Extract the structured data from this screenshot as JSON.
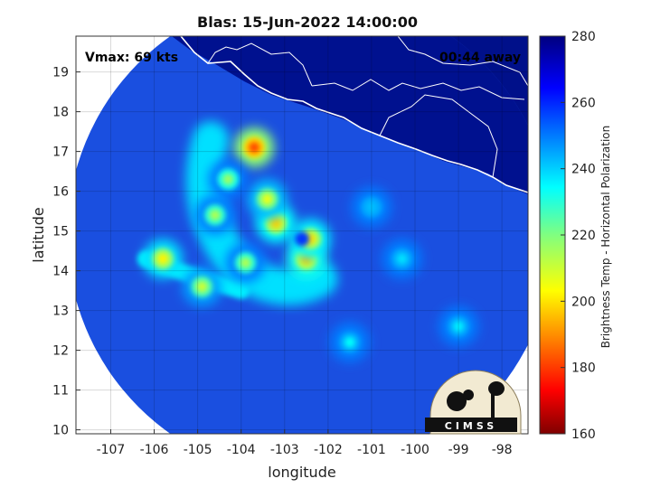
{
  "chart_data": {
    "type": "heatmap",
    "title": "Blas: 15-Jun-2022 14:00:00",
    "xlabel": "longitude",
    "ylabel": "latitude",
    "xlim": [
      -107.8,
      -97.4
    ],
    "ylim": [
      9.9,
      19.9
    ],
    "xticks": [
      -107,
      -106,
      -105,
      -104,
      -103,
      -102,
      -101,
      -100,
      -99,
      -98
    ],
    "yticks": [
      10,
      11,
      12,
      13,
      14,
      15,
      16,
      17,
      18,
      19
    ],
    "xtick_labels": [
      "-107",
      "-106",
      "-105",
      "-104",
      "-103",
      "-102",
      "-101",
      "-100",
      "-99",
      "-98"
    ],
    "ytick_labels": [
      "10",
      "11",
      "12",
      "13",
      "14",
      "15",
      "16",
      "17",
      "18",
      "19"
    ],
    "grid": true,
    "colorbar": {
      "label": "Brightness Temp - Horizontal Polarization",
      "range": [
        160,
        280
      ],
      "ticks": [
        160,
        180,
        200,
        220,
        240,
        260,
        280
      ],
      "tick_labels": [
        "160",
        "180",
        "200",
        "220",
        "240",
        "260",
        "280"
      ],
      "colormap": "jet"
    },
    "swath": {
      "center_lon": -102.4,
      "center_lat": 14.9,
      "radius_deg": 5.6
    },
    "storm_center": {
      "lon": -102.6,
      "lat": 14.8
    },
    "annotations": {
      "vmax": "Vmax: 69 kts",
      "time_offset": "00:44 away"
    },
    "features": [
      {
        "lon": -102.5,
        "lat": 14.3,
        "value": 196
      },
      {
        "lon": -102.4,
        "lat": 14.8,
        "value": 200
      },
      {
        "lon": -103.2,
        "lat": 15.2,
        "value": 198
      },
      {
        "lon": -103.4,
        "lat": 15.8,
        "value": 206
      },
      {
        "lon": -103.7,
        "lat": 17.1,
        "value": 182
      },
      {
        "lon": -104.3,
        "lat": 16.3,
        "value": 216
      },
      {
        "lon": -104.6,
        "lat": 15.4,
        "value": 214
      },
      {
        "lon": -103.9,
        "lat": 14.2,
        "value": 214
      },
      {
        "lon": -105.8,
        "lat": 14.3,
        "value": 202
      },
      {
        "lon": -104.9,
        "lat": 13.6,
        "value": 210
      },
      {
        "lon": -101.5,
        "lat": 12.2,
        "value": 234
      },
      {
        "lon": -99.0,
        "lat": 12.6,
        "value": 236
      },
      {
        "lon": -100.3,
        "lat": 14.3,
        "value": 238
      },
      {
        "lon": -101.0,
        "lat": 15.6,
        "value": 242
      }
    ]
  },
  "logo": {
    "text": "CIMSS"
  },
  "colors": {
    "background": "#ffffff",
    "land_outline": "#ffffff",
    "swath_base": "#1a4fe0",
    "outside": "#ffffff"
  }
}
